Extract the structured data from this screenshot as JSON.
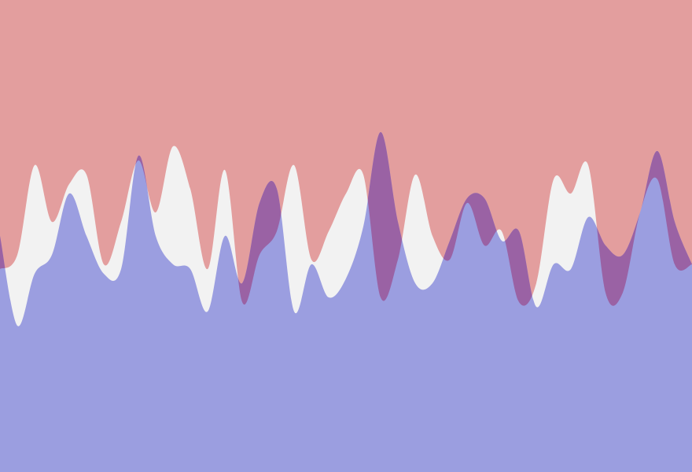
{
  "chart_data": {
    "type": "area",
    "title": "",
    "xlabel": "",
    "ylabel": "",
    "xlim": [
      0,
      160
    ],
    "ylim": [
      0,
      1
    ],
    "grid": false,
    "legend": "none",
    "background": "#f2f2f2",
    "colors": {
      "top": "#e39e9e",
      "bottom": "#9b9ee0",
      "overlap": "#9a62a4"
    },
    "series": [
      {
        "role": "top",
        "fill": "#e39e9e",
        "x": [
          0,
          4,
          8,
          12,
          16,
          20,
          24,
          28,
          32,
          36,
          40,
          44,
          48,
          52,
          56,
          60,
          64,
          68,
          72,
          76,
          80,
          84,
          88,
          92,
          96,
          100,
          104,
          108,
          112,
          116,
          120,
          124,
          128,
          132,
          136,
          140,
          144,
          148,
          152,
          156,
          160
        ],
        "values": [
          0.43,
          0.46,
          0.65,
          0.53,
          0.61,
          0.63,
          0.44,
          0.53,
          0.66,
          0.55,
          0.69,
          0.6,
          0.43,
          0.64,
          0.36,
          0.46,
          0.51,
          0.65,
          0.45,
          0.51,
          0.59,
          0.63,
          0.37,
          0.45,
          0.63,
          0.5,
          0.45,
          0.57,
          0.48,
          0.51,
          0.36,
          0.4,
          0.62,
          0.59,
          0.65,
          0.38,
          0.38,
          0.55,
          0.62,
          0.44,
          0.44
        ]
      },
      {
        "role": "bottom",
        "fill": "#9b9ee0",
        "x": [
          0,
          4,
          8,
          12,
          16,
          20,
          24,
          28,
          32,
          36,
          40,
          44,
          48,
          52,
          56,
          60,
          64,
          68,
          72,
          76,
          80,
          84,
          88,
          92,
          96,
          100,
          104,
          108,
          112,
          116,
          120,
          124,
          128,
          132,
          136,
          140,
          144,
          148,
          152,
          156,
          160
        ],
        "values": [
          0.5,
          0.31,
          0.42,
          0.46,
          0.59,
          0.5,
          0.42,
          0.43,
          0.67,
          0.5,
          0.44,
          0.43,
          0.34,
          0.5,
          0.4,
          0.57,
          0.6,
          0.34,
          0.44,
          0.37,
          0.41,
          0.52,
          0.72,
          0.53,
          0.4,
          0.4,
          0.49,
          0.58,
          0.58,
          0.49,
          0.51,
          0.35,
          0.44,
          0.43,
          0.54,
          0.48,
          0.46,
          0.55,
          0.68,
          0.53,
          0.44
        ]
      }
    ]
  }
}
